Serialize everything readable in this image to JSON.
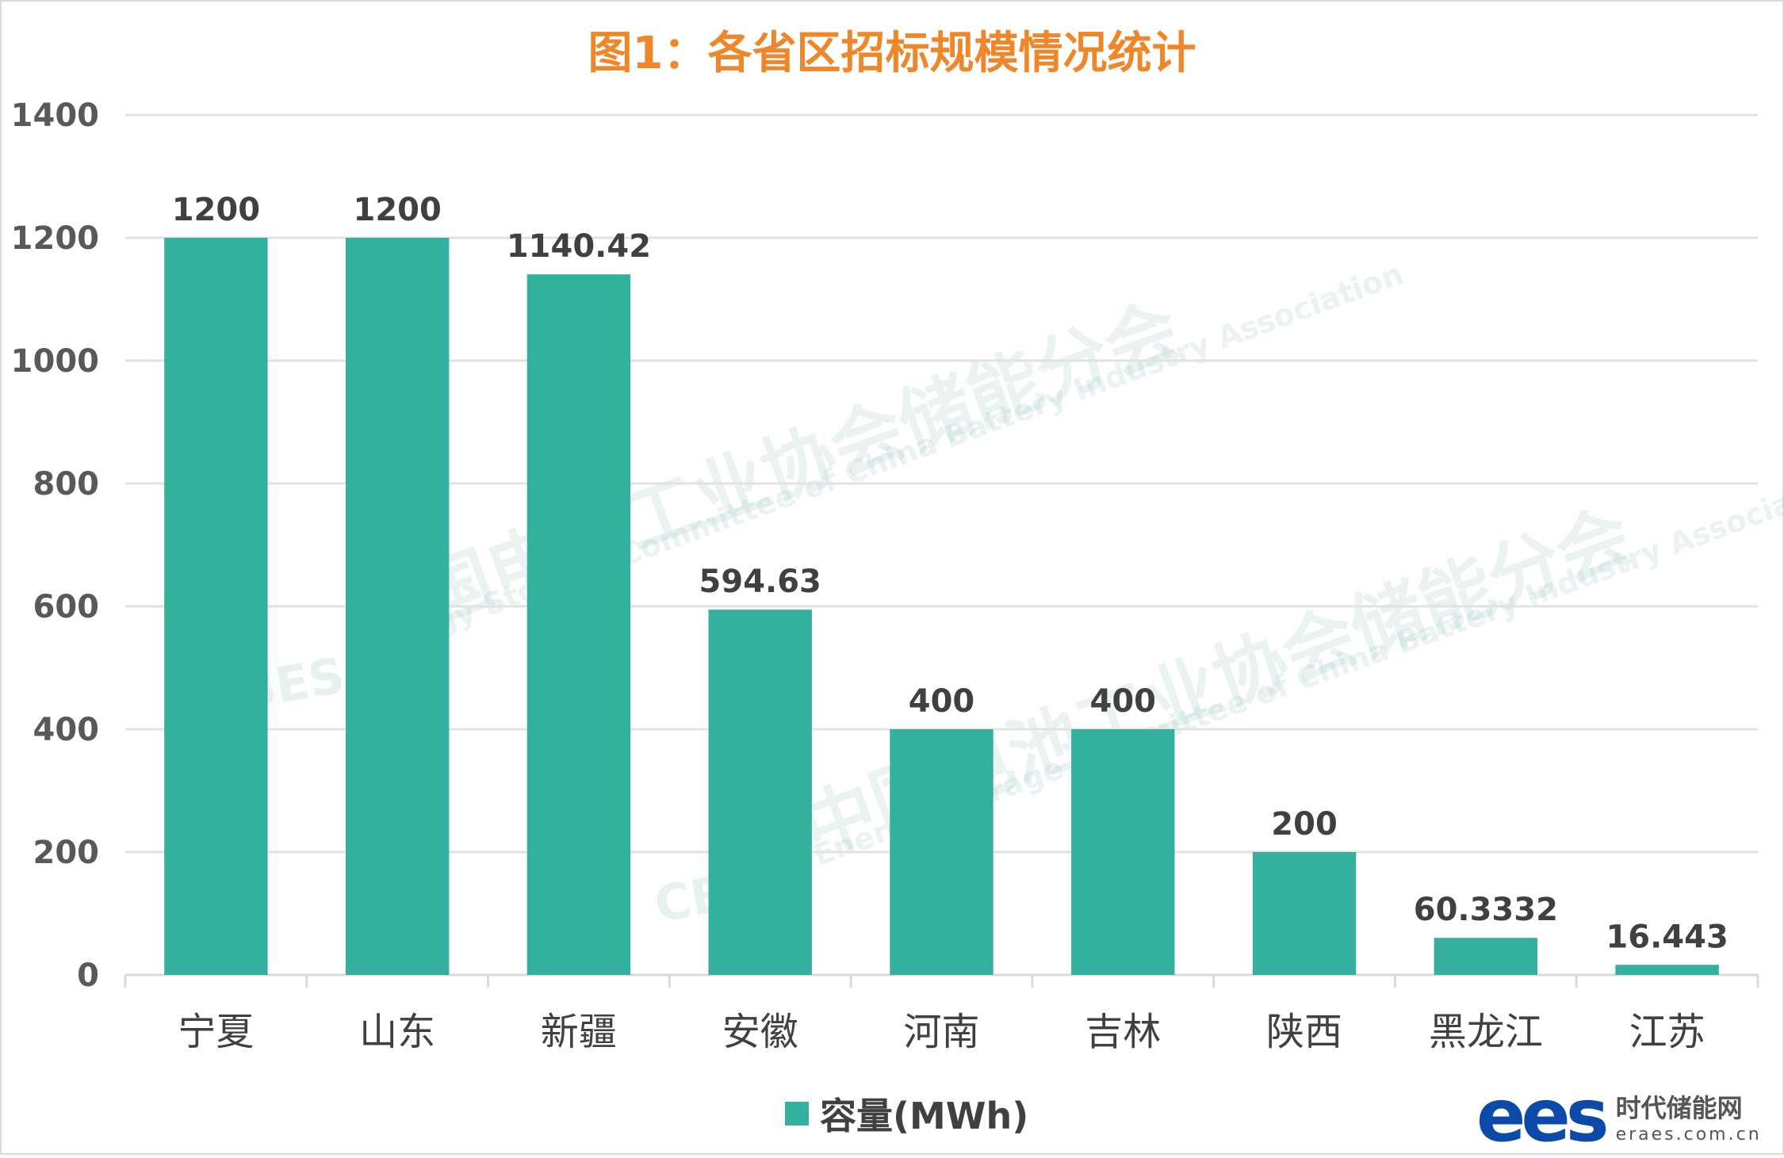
{
  "chart_data": {
    "type": "bar",
    "title": "图1：各省区招标规模情况统计",
    "categories": [
      "宁夏",
      "山东",
      "新疆",
      "安徽",
      "河南",
      "吉林",
      "陕西",
      "黑龙江",
      "江苏"
    ],
    "series": [
      {
        "name": "容量(MWh)",
        "values": [
          1200,
          1200,
          1140.42,
          594.63,
          400,
          400,
          200,
          60.3332,
          16.443
        ]
      }
    ],
    "data_labels": [
      "1200",
      "1200",
      "1140.42",
      "594.63",
      "400",
      "400",
      "200",
      "60.3332",
      "16.443"
    ],
    "xlabel": "",
    "ylabel": "",
    "ylim": [
      0,
      1400
    ],
    "yticks": [
      0,
      200,
      400,
      600,
      800,
      1000,
      1200,
      1400
    ],
    "grid": true,
    "legend": "bottom-center",
    "color": "#33b09e"
  },
  "watermark": {
    "cn": "中国电池工业协会储能分会",
    "en": "Energy Storage Committee of China Battery Industry Association",
    "abbr": "CBES"
  },
  "logo": {
    "mark": "ees",
    "cn": "时代储能网",
    "url": "eraes.com.cn"
  }
}
